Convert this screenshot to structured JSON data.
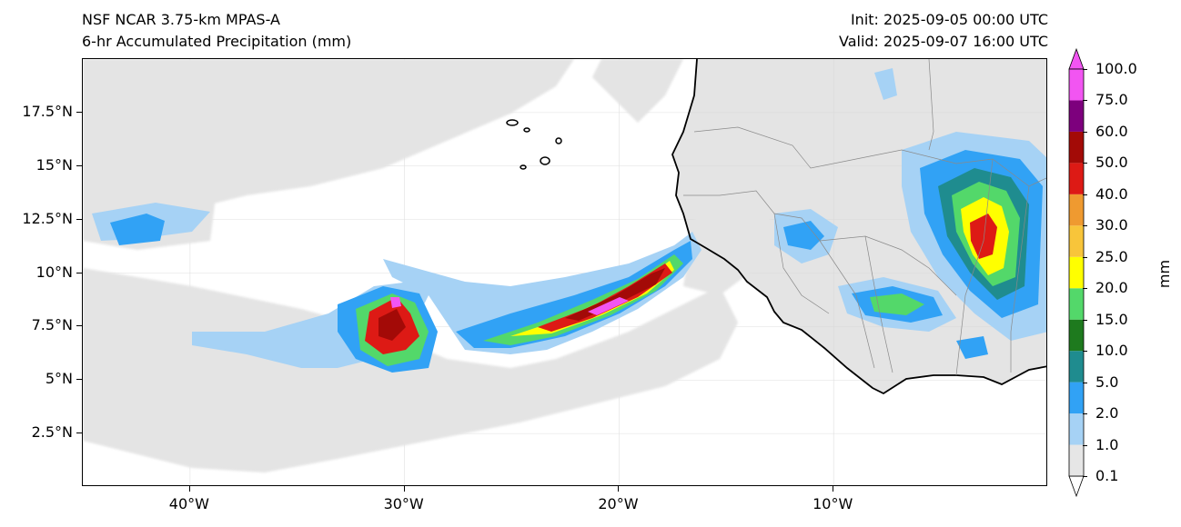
{
  "header": {
    "model": "NSF NCAR 3.75-km MPAS-A",
    "field": "6-hr Accumulated Precipitation (mm)",
    "init": "Init: 2025-09-05 00:00 UTC",
    "valid": "Valid: 2025-09-07 16:00 UTC"
  },
  "map": {
    "lon_range": [
      -45,
      0
    ],
    "lat_range": [
      0,
      20
    ],
    "lat_ticks": [
      {
        "lat": 17.5,
        "label": "17.5°N"
      },
      {
        "lat": 15,
        "label": "15°N"
      },
      {
        "lat": 12.5,
        "label": "12.5°N"
      },
      {
        "lat": 10,
        "label": "10°N"
      },
      {
        "lat": 7.5,
        "label": "7.5°N"
      },
      {
        "lat": 5,
        "label": "5°N"
      },
      {
        "lat": 2.5,
        "label": "2.5°N"
      }
    ],
    "lon_ticks": [
      {
        "lon": -40,
        "label": "40°W"
      },
      {
        "lon": -30,
        "label": "30°W"
      },
      {
        "lon": -20,
        "label": "20°W"
      },
      {
        "lon": -10,
        "label": "10°W"
      }
    ],
    "land_color": "#e4e4e4",
    "coast_color": "#000000",
    "border_color": "#8a8a8a",
    "gridlines": true
  },
  "colorbar": {
    "unit": "mm",
    "levels": [
      "0.1",
      "1.0",
      "2.0",
      "5.0",
      "10.0",
      "15.0",
      "20.0",
      "25.0",
      "30.0",
      "40.0",
      "50.0",
      "60.0",
      "75.0",
      "100.0"
    ],
    "colors": [
      "#e6e6e6",
      "#a6d2f5",
      "#31a2f5",
      "#1f8c8f",
      "#1e7a1e",
      "#53d86a",
      "#ffff00",
      "#f8c53a",
      "#ef9a30",
      "#dd1a15",
      "#a30a07",
      "#7d007d",
      "#f255f2"
    ],
    "extend": "both"
  }
}
